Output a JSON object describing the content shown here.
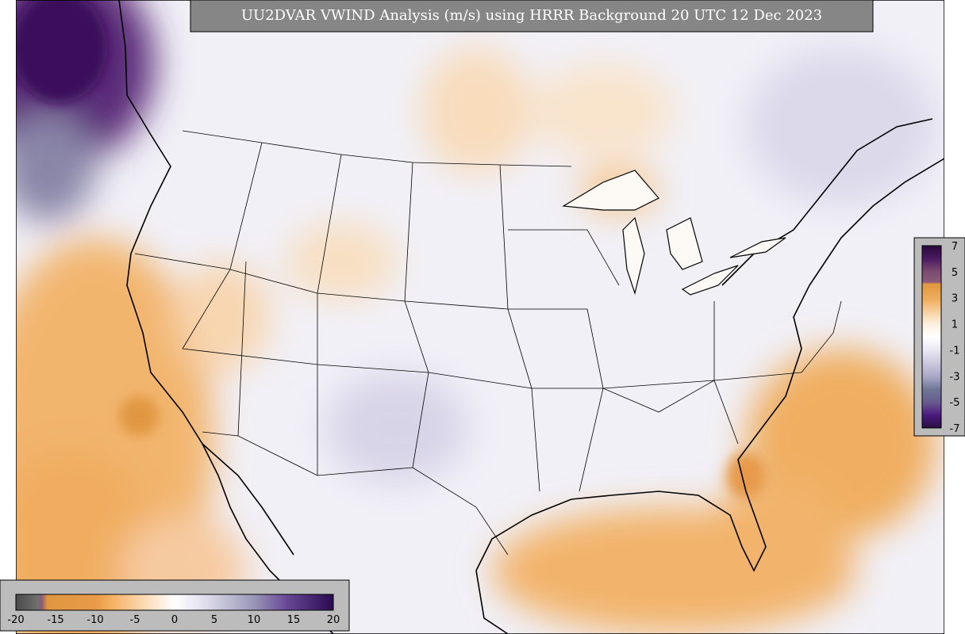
{
  "title": "UU2DVAR VWIND Analysis (m/s) using HRRR Background 20 UTC 12 Dec 2023",
  "colorbar_right": {
    "ticks": [
      "7",
      "5",
      "3",
      "1",
      "-1",
      "-3",
      "-5",
      "-7"
    ]
  },
  "colorbar_bottom": {
    "ticks": [
      "-20",
      "-15",
      "-10",
      "-5",
      "0",
      "5",
      "10",
      "15",
      "20"
    ]
  }
}
